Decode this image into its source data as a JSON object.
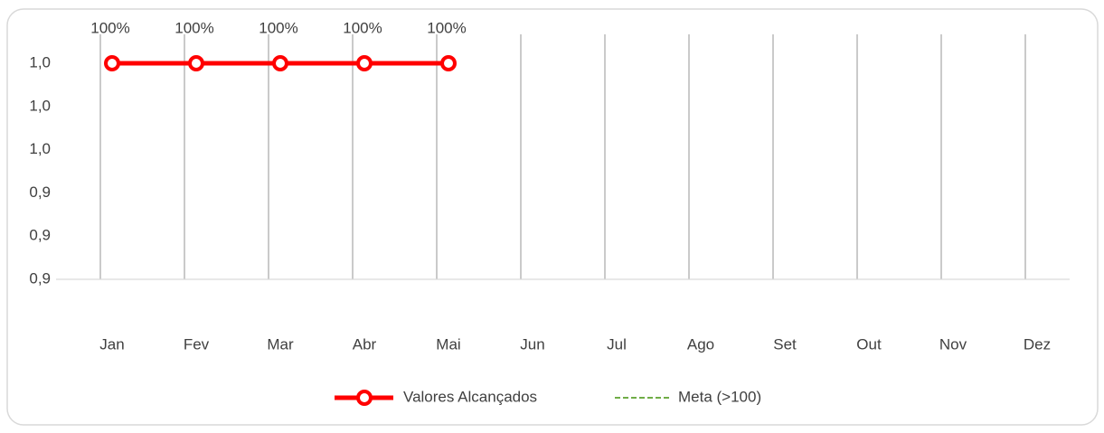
{
  "chart_data": {
    "type": "line",
    "categories": [
      "Jan",
      "Fev",
      "Mar",
      "Abr",
      "Mai",
      "Jun",
      "Jul",
      "Ago",
      "Set",
      "Out",
      "Nov",
      "Dez"
    ],
    "series": [
      {
        "name": "Valores Alcançados",
        "color": "#ff0000",
        "values": [
          1,
          1,
          1,
          1,
          1,
          null,
          null,
          null,
          null,
          null,
          null,
          null
        ],
        "value_labels": [
          "100%",
          "100%",
          "100%",
          "100%",
          "100%",
          null,
          null,
          null,
          null,
          null,
          null,
          null
        ]
      },
      {
        "name": "Meta (>100)",
        "color": "#70ad47",
        "values": [
          null,
          null,
          null,
          null,
          null,
          null,
          null,
          null,
          null,
          null,
          null,
          null
        ]
      }
    ],
    "ylim": [
      0.9,
      1.0
    ],
    "yticks": [
      {
        "value": 0.9,
        "label": "0,9"
      },
      {
        "value": 0.92,
        "label": "0,9"
      },
      {
        "value": 0.94,
        "label": "0,9"
      },
      {
        "value": 0.96,
        "label": "1,0"
      },
      {
        "value": 0.98,
        "label": "1,0"
      },
      {
        "value": 1.0,
        "label": "1,0"
      }
    ],
    "grid": true,
    "legend": "bottom"
  }
}
